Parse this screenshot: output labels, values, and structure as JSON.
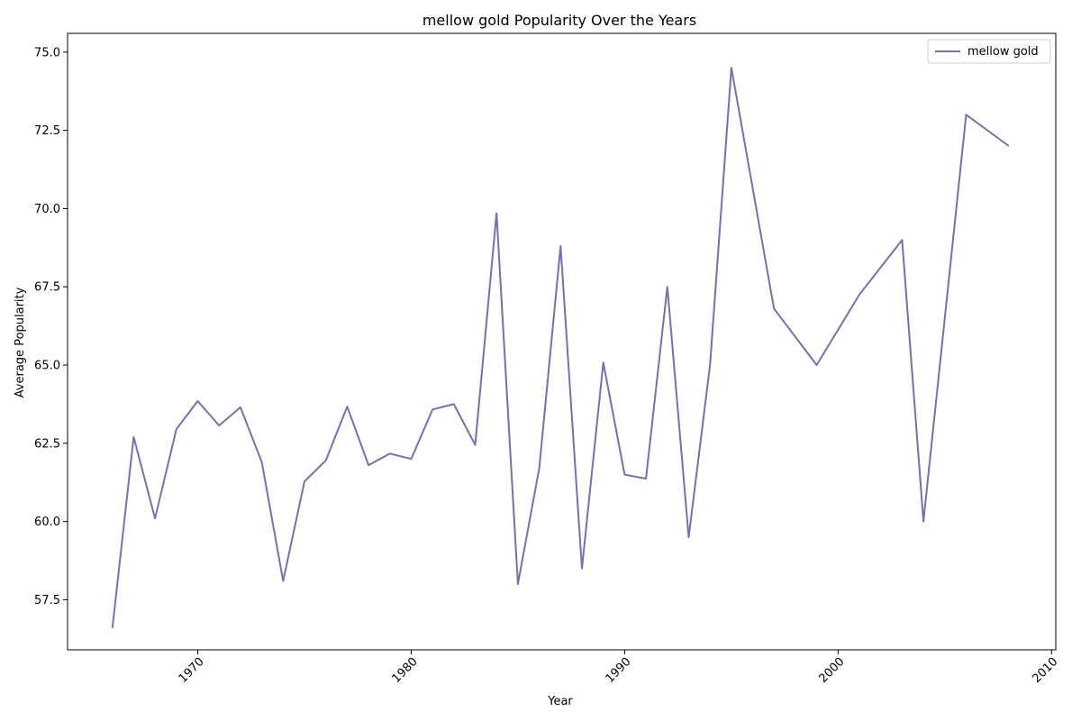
{
  "chart_data": {
    "type": "line",
    "title": "mellow gold Popularity Over the Years",
    "xlabel": "Year",
    "ylabel": "Average Popularity",
    "xlim": [
      1963.9,
      2010.2
    ],
    "ylim": [
      55.9,
      75.6
    ],
    "x_ticks": [
      1970,
      1980,
      1990,
      2000,
      2010
    ],
    "y_ticks": [
      57.5,
      60.0,
      62.5,
      65.0,
      67.5,
      70.0,
      72.5,
      75.0
    ],
    "y_tick_labels": [
      "57.5",
      "60.0",
      "62.5",
      "65.0",
      "67.5",
      "70.0",
      "72.5",
      "75.0"
    ],
    "grid": false,
    "legend_position": "top-right",
    "series": [
      {
        "name": "mellow gold",
        "color": "#7570b3",
        "x": [
          1966,
          1967,
          1968,
          1969,
          1970,
          1971,
          1972,
          1973,
          1974,
          1975,
          1976,
          1977,
          1978,
          1979,
          1980,
          1981,
          1982,
          1983,
          1984,
          1985,
          1986,
          1987,
          1988,
          1989,
          1990,
          1991,
          1992,
          1993,
          1994,
          1995,
          1997,
          1999,
          2001,
          2003,
          2004,
          2006,
          2008
        ],
        "y": [
          56.6,
          62.7,
          60.1,
          62.95,
          63.85,
          63.07,
          63.65,
          61.9,
          58.1,
          61.28,
          61.95,
          63.67,
          61.8,
          62.17,
          62.0,
          63.58,
          63.75,
          62.45,
          69.85,
          58.0,
          61.7,
          68.8,
          58.5,
          65.08,
          61.5,
          61.37,
          67.5,
          59.5,
          65.0,
          74.5,
          66.8,
          65.0,
          67.25,
          69.0,
          60.0,
          73.0,
          72.0
        ]
      }
    ]
  }
}
